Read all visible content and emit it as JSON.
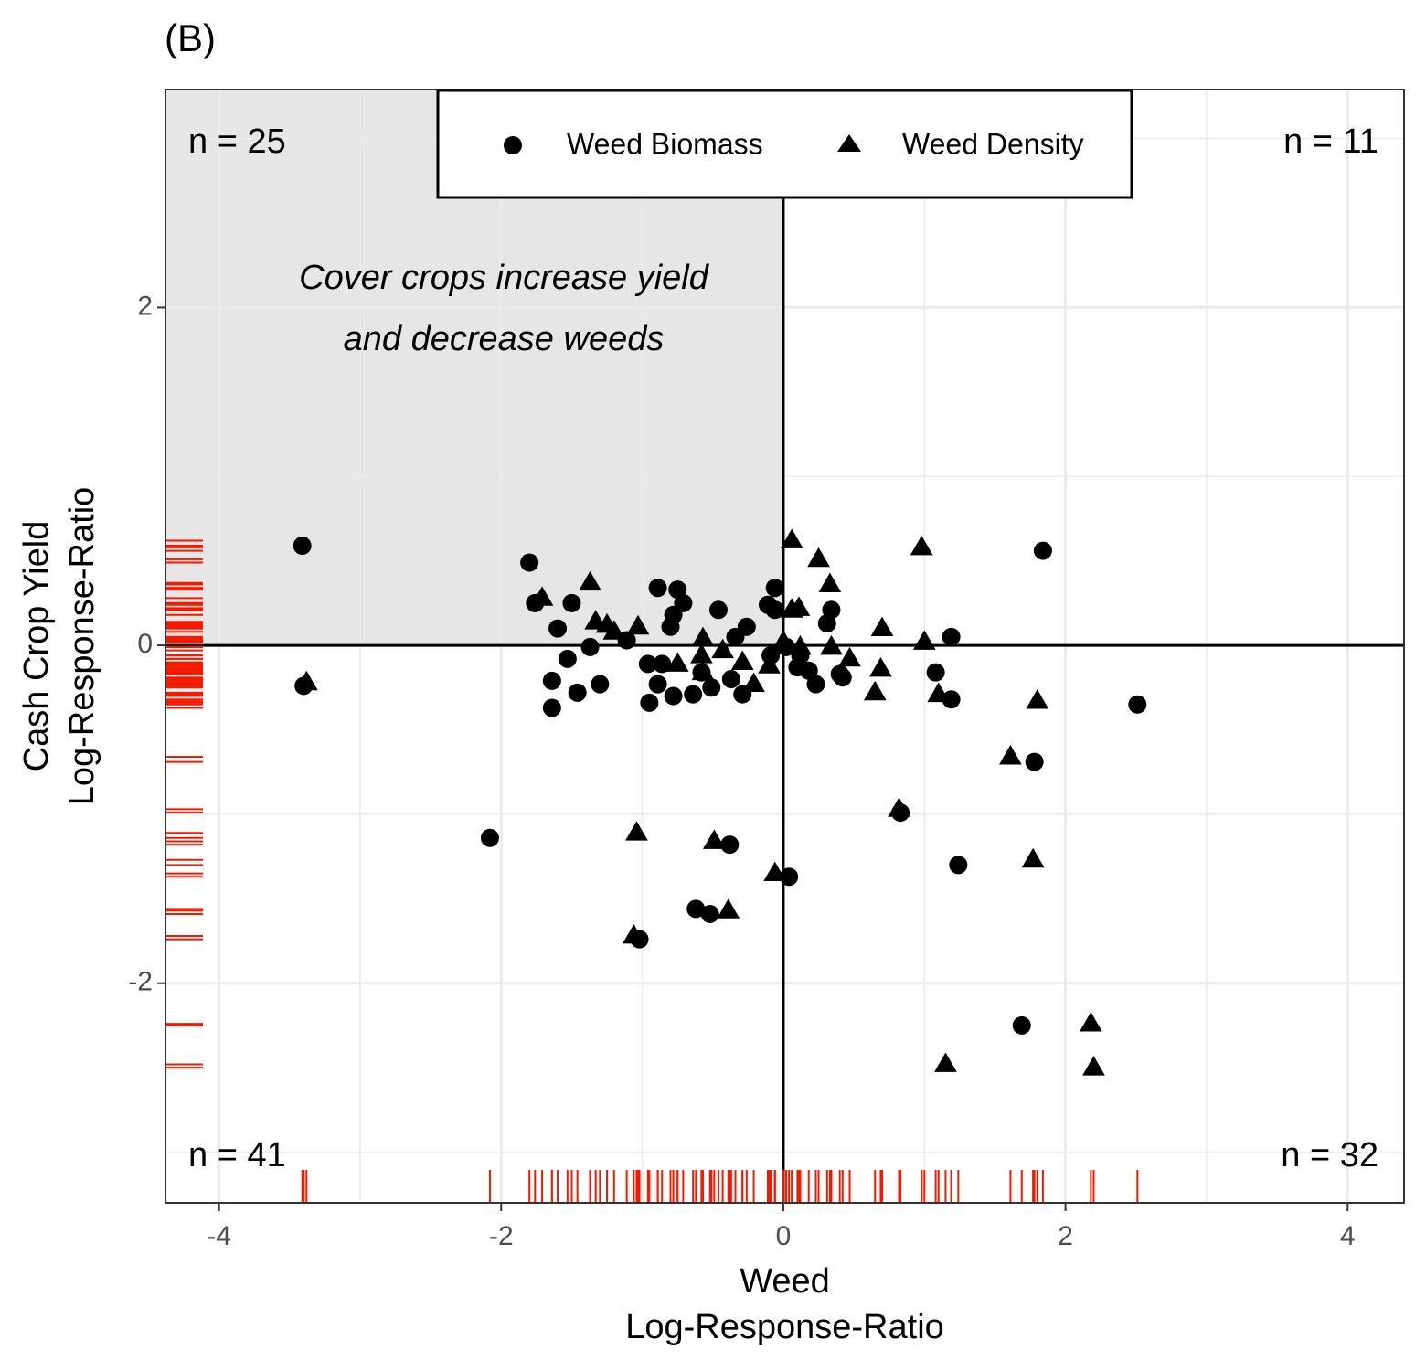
{
  "chart_data": {
    "type": "scatter",
    "title": "(B)",
    "x_label": [
      "Weed",
      "Log-Response-Ratio"
    ],
    "y_label": [
      "Cash Crop Yield",
      "Log-Response-Ratio"
    ],
    "xlim": [
      -4.38,
      4.4
    ],
    "ylim": [
      -3.3,
      3.29
    ],
    "xticks": [
      -4,
      -2,
      0,
      2,
      4
    ],
    "yticks": [
      -2,
      0,
      2
    ],
    "minor_xticks": [
      -3,
      -1,
      1,
      3
    ],
    "minor_yticks": [
      -3,
      -1,
      1,
      3
    ],
    "grid": true,
    "legend": "top",
    "shade_quadrant": "top-left",
    "rug_color": "#f21a00",
    "annotation": [
      "Cover crops increase yield",
      "and decrease weeds"
    ],
    "quadrant_labels": [
      {
        "text": "n = 25",
        "corner": "top-left"
      },
      {
        "text": "n = 11",
        "corner": "top-right"
      },
      {
        "text": "n = 41",
        "corner": "bottom-left"
      },
      {
        "text": "n = 32",
        "corner": "bottom-right"
      }
    ],
    "series": [
      {
        "name": "Weed Biomass",
        "marker": "circle",
        "color": "#000000",
        "x": [
          -3.41,
          -1.8,
          -1.76,
          -1.5,
          -1.6,
          -1.53,
          -1.37,
          -1.64,
          -1.46,
          -1.3,
          -1.64,
          -1.11,
          -0.89,
          -0.75,
          -0.71,
          -0.78,
          -0.8,
          -0.96,
          -0.86,
          -0.89,
          -0.95,
          -0.78,
          -0.64,
          -0.58,
          -0.51,
          -0.46,
          -0.34,
          -0.26,
          -0.37,
          -0.29,
          -0.11,
          -0.06,
          -0.06,
          -0.09,
          0.02,
          0.12,
          0.1,
          0.18,
          0.23,
          0.31,
          0.34,
          0.4,
          0.42,
          1.19,
          1.08,
          1.19,
          1.84,
          2.51,
          1.78,
          0.83,
          1.24,
          1.69,
          -2.08,
          -1.02,
          -0.62,
          -0.52,
          -0.38,
          0.04,
          -3.4
        ],
        "values": [
          0.59,
          0.49,
          0.25,
          0.25,
          0.1,
          -0.08,
          -0.01,
          -0.21,
          -0.28,
          -0.23,
          -0.37,
          0.03,
          0.34,
          0.33,
          0.25,
          0.18,
          0.11,
          -0.11,
          -0.11,
          -0.23,
          -0.34,
          -0.3,
          -0.29,
          -0.16,
          -0.25,
          0.21,
          0.05,
          0.11,
          -0.2,
          -0.29,
          0.24,
          0.34,
          0.21,
          -0.06,
          -0.01,
          -0.06,
          -0.13,
          -0.15,
          -0.23,
          0.13,
          0.21,
          -0.17,
          -0.19,
          0.05,
          -0.16,
          -0.32,
          0.56,
          -0.35,
          -0.69,
          -0.99,
          -1.3,
          -2.25,
          -1.14,
          -1.74,
          -1.56,
          -1.59,
          -1.18,
          -1.37,
          -0.24
        ]
      },
      {
        "name": "Weed Density",
        "marker": "triangle",
        "color": "#000000",
        "x": [
          -3.38,
          -1.71,
          -1.37,
          -1.33,
          -1.25,
          -1.2,
          -1.03,
          -0.75,
          -0.57,
          -0.58,
          -0.57,
          -0.43,
          -0.29,
          -0.21,
          -0.1,
          0.06,
          0.06,
          0.11,
          0.25,
          0.33,
          0.12,
          0.34,
          0.47,
          0.0,
          0.65,
          0.7,
          0.69,
          0.98,
          1.0,
          1.1,
          1.8,
          1.61,
          0.82,
          1.77,
          -1.04,
          -0.49,
          -0.39,
          -0.06,
          -1.06,
          2.18,
          1.15,
          2.2
        ],
        "values": [
          -0.22,
          0.28,
          0.37,
          0.14,
          0.12,
          0.08,
          0.11,
          -0.11,
          0.04,
          -0.06,
          -0.16,
          -0.03,
          -0.1,
          -0.23,
          -0.12,
          0.62,
          0.21,
          0.22,
          0.51,
          0.36,
          -0.01,
          -0.01,
          -0.08,
          0.02,
          -0.28,
          0.1,
          -0.14,
          0.58,
          0.02,
          -0.29,
          -0.33,
          -0.66,
          -0.97,
          -1.27,
          -1.11,
          -1.16,
          -1.57,
          -1.35,
          -1.72,
          -2.24,
          -2.48,
          -2.5
        ]
      }
    ]
  }
}
